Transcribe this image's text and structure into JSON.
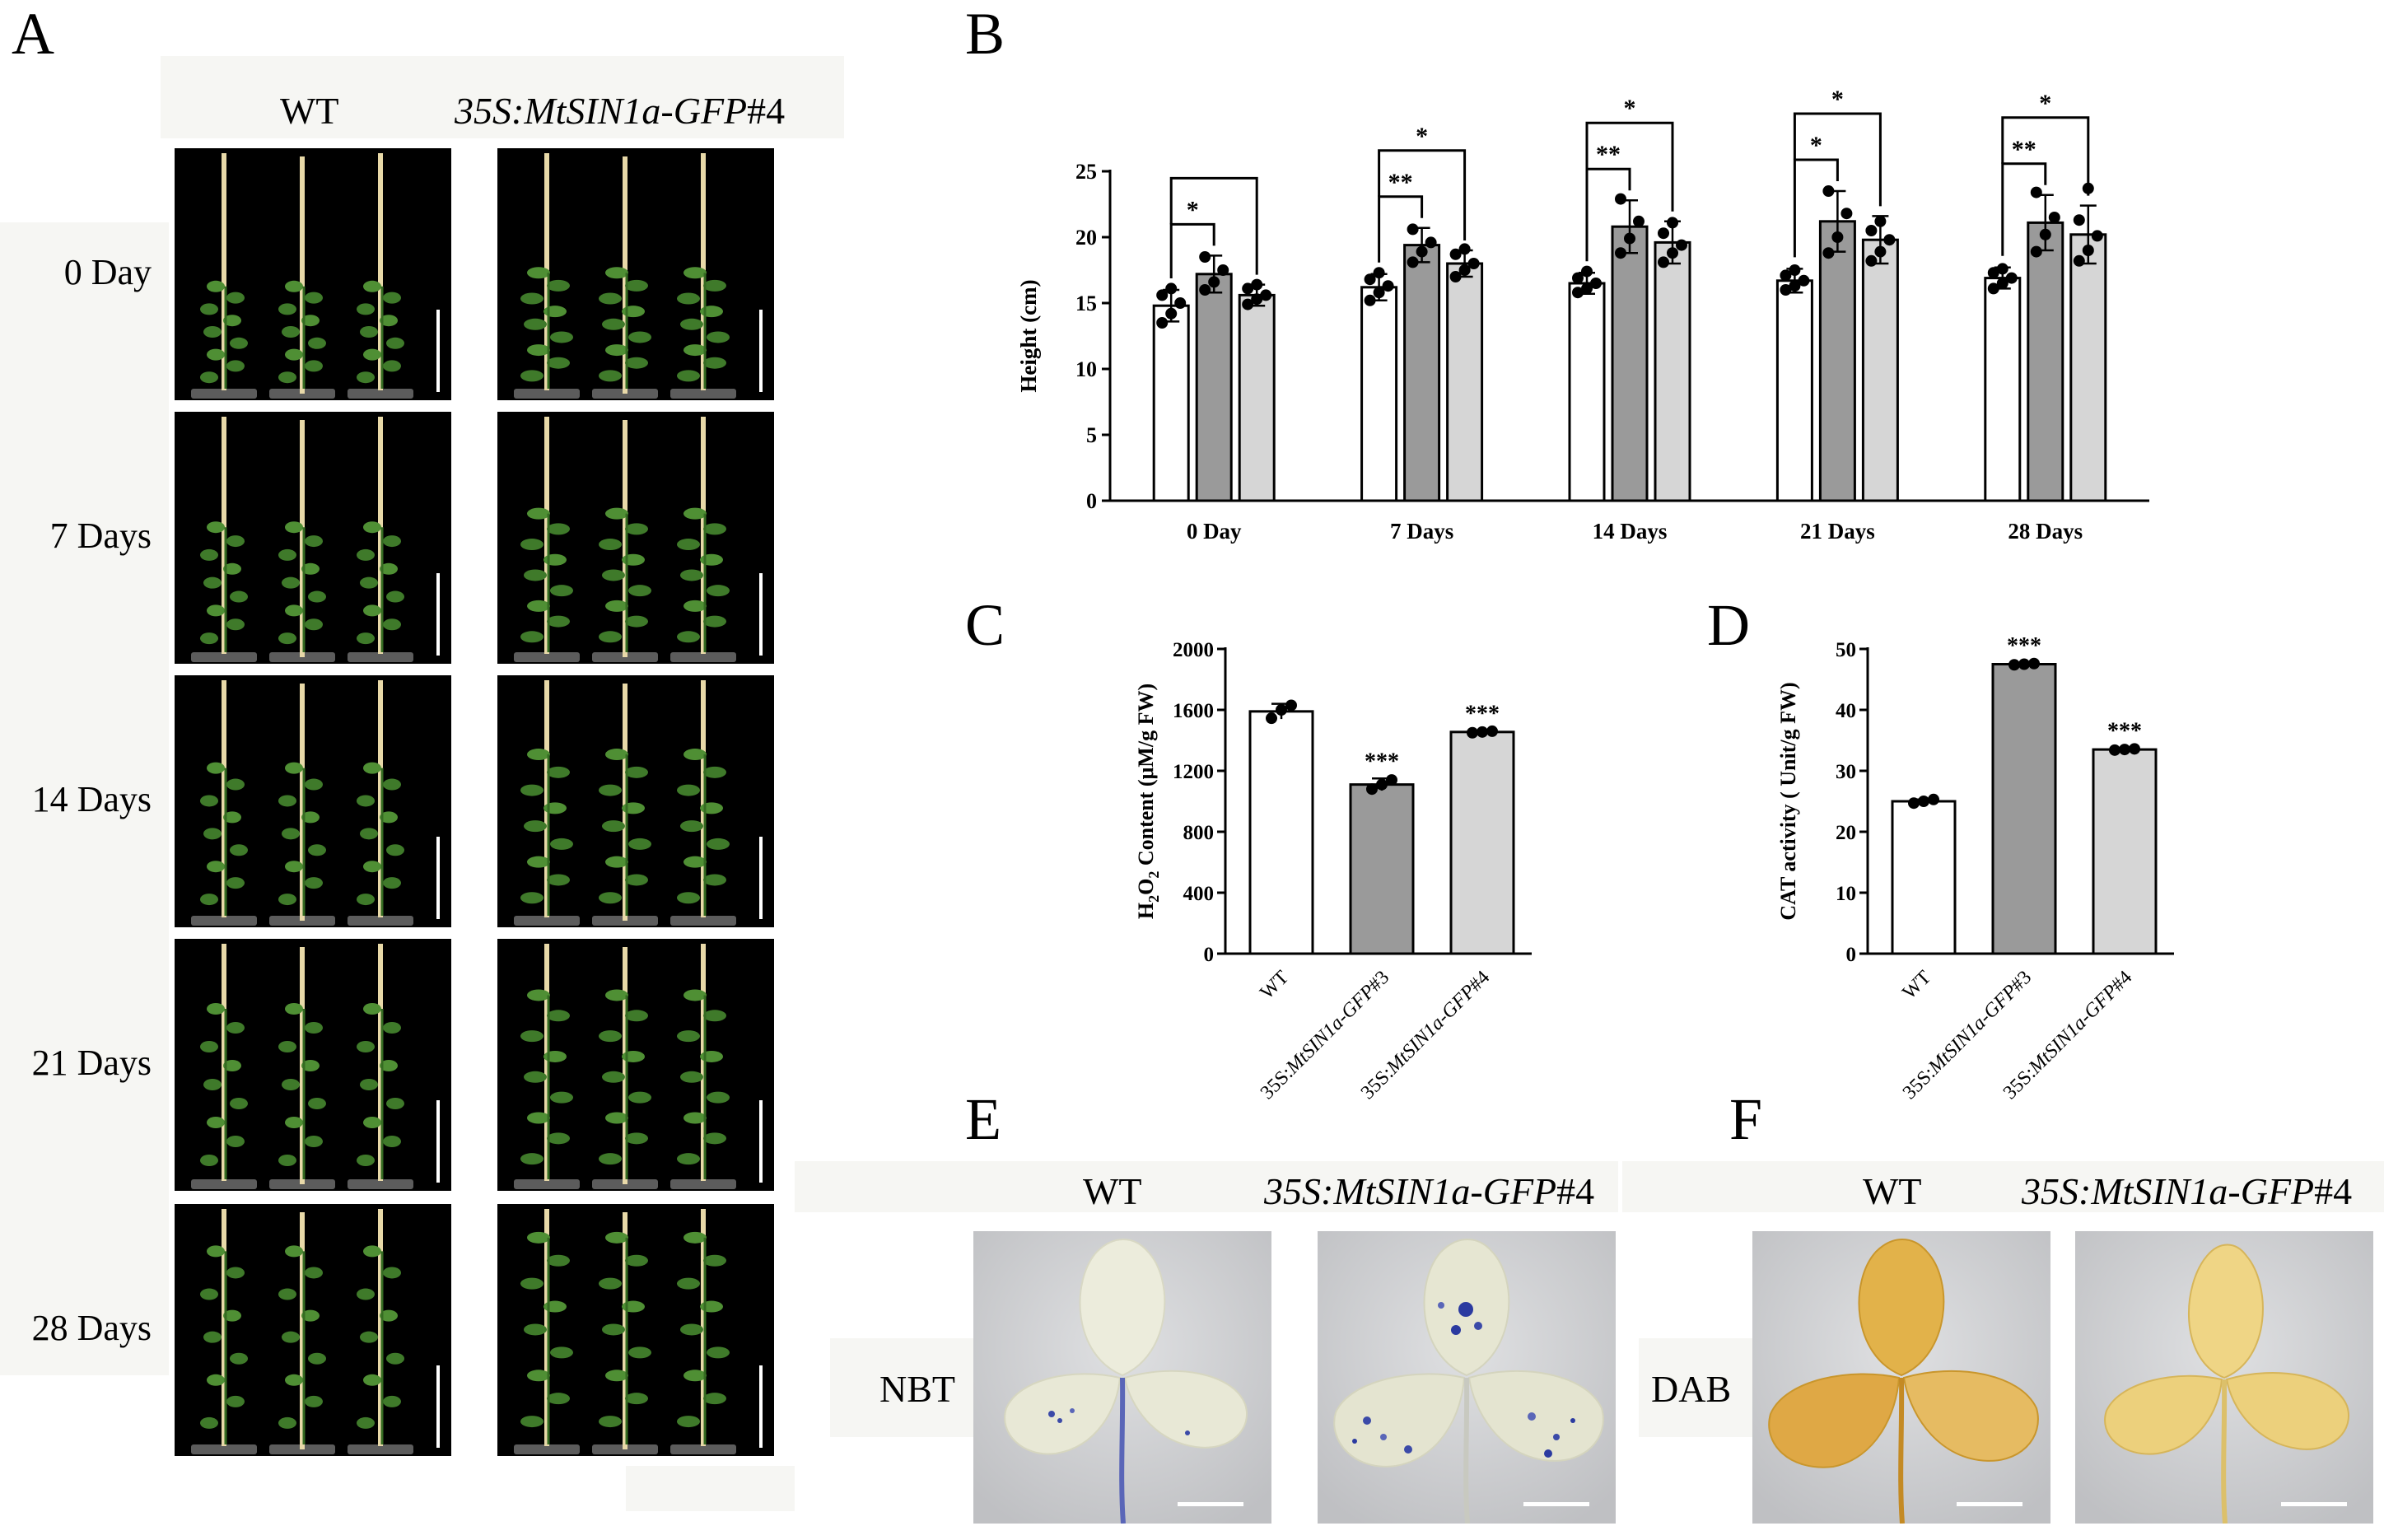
{
  "panels": {
    "A": {
      "letter": "A",
      "col_headers": [
        "WT",
        "35S:MtSIN1a-GFP#4"
      ],
      "col_header_parts": [
        {
          "italic": "35S:MtSIN1a-GFP",
          "plain": "#4"
        }
      ],
      "rows": [
        "0 Day",
        "7 Days",
        "14 Days",
        "21 Days",
        "28 Days"
      ]
    },
    "B": {
      "letter": "B"
    },
    "C": {
      "letter": "C"
    },
    "D": {
      "letter": "D"
    },
    "E": {
      "letter": "E",
      "headers": [
        "WT",
        "35S:MtSIN1a-GFP#4"
      ],
      "header_parts": {
        "italic": "35S:MtSIN1a-GFP",
        "plain": "#4"
      },
      "stain": "NBT"
    },
    "F": {
      "letter": "F",
      "headers": [
        "WT",
        "35S:MtSIN1a-GFP#4"
      ],
      "header_parts": {
        "italic": "35S:MtSIN1a-GFP",
        "plain": "#4"
      },
      "stain": "DAB"
    }
  },
  "colors": {
    "wt_bar": "#ffffff",
    "line3_bar": "#9a9a9a",
    "line4_bar": "#d6d6d6",
    "nbt_stain": "#2b3aa0",
    "dab_stain": "#d9a63a"
  },
  "chart_data": [
    {
      "panel": "B",
      "type": "bar",
      "ylabel": "Height (cm)",
      "ylim": [
        0,
        25
      ],
      "yticks": [
        0,
        5,
        10,
        15,
        20,
        25
      ],
      "categories": [
        "0 Day",
        "7 Days",
        "14 Days",
        "21 Days",
        "28 Days"
      ],
      "series": [
        {
          "values": [
            14.8,
            16.2,
            16.5,
            16.7,
            16.9
          ],
          "errors": [
            1.2,
            1.0,
            0.8,
            0.9,
            0.8
          ],
          "points": [
            [
              13.5,
              14.2,
              15.0,
              15.6,
              16.1
            ],
            [
              15.2,
              15.8,
              16.3,
              16.8,
              17.3
            ],
            [
              15.8,
              16.1,
              16.5,
              16.9,
              17.4
            ],
            [
              16.0,
              16.3,
              16.7,
              17.1,
              17.5
            ],
            [
              16.1,
              16.5,
              16.9,
              17.3,
              17.6
            ]
          ]
        },
        {
          "values": [
            17.2,
            19.4,
            20.8,
            21.2,
            21.1
          ],
          "errors": [
            1.4,
            1.3,
            2.0,
            2.3,
            2.1
          ],
          "points": [
            [
              16.0,
              16.6,
              17.5,
              18.5
            ],
            [
              18.1,
              18.9,
              19.6,
              20.6
            ],
            [
              18.8,
              19.9,
              21.2,
              22.9
            ],
            [
              18.8,
              20.0,
              21.8,
              23.5
            ],
            [
              18.9,
              20.2,
              21.5,
              23.4
            ]
          ]
        },
        {
          "values": [
            15.6,
            18.0,
            19.6,
            19.8,
            20.2
          ],
          "errors": [
            0.8,
            1.0,
            1.6,
            1.8,
            2.2
          ],
          "points": [
            [
              14.9,
              15.3,
              15.6,
              16.1,
              16.4
            ],
            [
              17.0,
              17.5,
              18.0,
              18.7,
              19.1
            ],
            [
              18.1,
              18.8,
              19.4,
              20.3,
              21.1
            ],
            [
              18.2,
              18.9,
              19.8,
              20.5,
              21.2
            ],
            [
              18.2,
              19.0,
              20.1,
              21.3,
              23.7
            ]
          ]
        }
      ],
      "significance": [
        [
          {
            "pair": [
              0,
              1
            ],
            "label": "*"
          },
          {
            "pair": [
              0,
              2
            ],
            "label": ""
          }
        ],
        [
          {
            "pair": [
              0,
              1
            ],
            "label": "**"
          },
          {
            "pair": [
              0,
              2
            ],
            "label": "*"
          }
        ],
        [
          {
            "pair": [
              0,
              1
            ],
            "label": "**"
          },
          {
            "pair": [
              0,
              2
            ],
            "label": "*"
          }
        ],
        [
          {
            "pair": [
              0,
              1
            ],
            "label": "*"
          },
          {
            "pair": [
              0,
              2
            ],
            "label": "*"
          }
        ],
        [
          {
            "pair": [
              0,
              1
            ],
            "label": "**"
          },
          {
            "pair": [
              0,
              2
            ],
            "label": "*"
          }
        ]
      ]
    },
    {
      "panel": "C",
      "type": "bar",
      "ylabel_parts": [
        "H",
        "2",
        "O",
        "2",
        " Content (μM/g FW)"
      ],
      "ylim": [
        0,
        2000
      ],
      "yticks": [
        0,
        400,
        800,
        1200,
        1600,
        2000
      ],
      "categories": [
        "WT",
        "35S:MtSIN1a-GFP#3",
        "35S:MtSIN1a-GFP#4"
      ],
      "category_parts": [
        [
          "WT",
          ""
        ],
        [
          "35S:",
          "MtSIN1a-GFP",
          "#3"
        ],
        [
          "35S:",
          "MtSIN1a-GFP",
          "#4"
        ]
      ],
      "values": [
        1590,
        1110,
        1455
      ],
      "errors": [
        50,
        40,
        8
      ],
      "points": [
        [
          1545,
          1600,
          1630
        ],
        [
          1080,
          1110,
          1140
        ],
        [
          1450,
          1455,
          1460
        ]
      ],
      "labels": [
        "",
        "***",
        "***"
      ]
    },
    {
      "panel": "D",
      "type": "bar",
      "ylabel": "CAT activity ( Unit/g FW)",
      "ylim": [
        0,
        50
      ],
      "yticks": [
        0,
        10,
        20,
        30,
        40,
        50
      ],
      "categories": [
        "WT",
        "35S:MtSIN1a-GFP#3",
        "35S:MtSIN1a-GFP#4"
      ],
      "category_parts": [
        [
          "WT",
          ""
        ],
        [
          "35S:",
          "MtSIN1a-GFP",
          "#3"
        ],
        [
          "35S:",
          "MtSIN1a-GFP",
          "#4"
        ]
      ],
      "values": [
        25.0,
        47.5,
        33.5
      ],
      "errors": [
        0.3,
        0.2,
        0.2
      ],
      "points": [
        [
          24.7,
          25.0,
          25.3
        ],
        [
          47.4,
          47.5,
          47.6
        ],
        [
          33.4,
          33.5,
          33.6
        ]
      ],
      "labels": [
        "",
        "***",
        "***"
      ]
    }
  ]
}
